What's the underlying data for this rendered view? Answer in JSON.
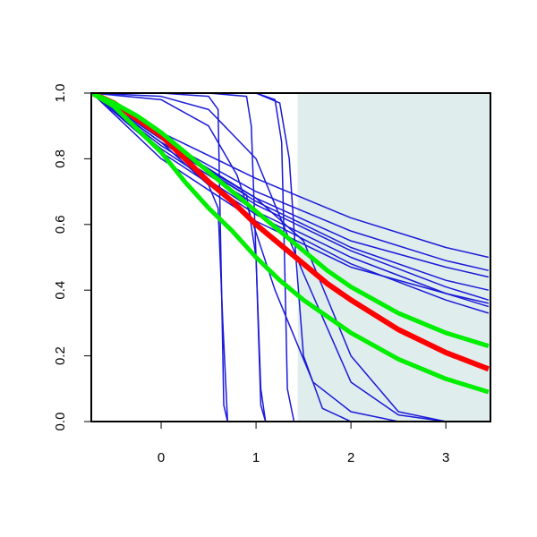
{
  "chart_data": {
    "type": "line",
    "xlim": [
      -0.736,
      3.47
    ],
    "ylim": [
      0,
      1
    ],
    "xticks": [
      0,
      1,
      2,
      3
    ],
    "yticks": [
      {
        "value": 0,
        "label": "0.0"
      },
      {
        "value": 0.2,
        "label": "0.2"
      },
      {
        "value": 0.4,
        "label": "0.4"
      },
      {
        "value": 0.6,
        "label": "0.6"
      },
      {
        "value": 0.8,
        "label": "0.8"
      },
      {
        "value": 1,
        "label": "1.0"
      }
    ],
    "shade_x": [
      1.44,
      3.47
    ],
    "shade_color": "#e0eded",
    "series": [
      {
        "color": "#1a1ad8",
        "width": 1.5,
        "x": [
          -0.73,
          0,
          1,
          2,
          3,
          3.45
        ],
        "values": [
          1,
          0.88,
          0.74,
          0.62,
          0.53,
          0.5
        ]
      },
      {
        "color": "#1a1ad8",
        "width": 1.5,
        "x": [
          -0.73,
          0,
          1,
          2,
          3,
          3.45
        ],
        "values": [
          1,
          0.86,
          0.7,
          0.58,
          0.49,
          0.46
        ]
      },
      {
        "color": "#1a1ad8",
        "width": 1.5,
        "x": [
          -0.73,
          0,
          1,
          2,
          3,
          3.45
        ],
        "values": [
          1,
          0.85,
          0.68,
          0.55,
          0.47,
          0.44
        ]
      },
      {
        "color": "#1a1ad8",
        "width": 1.5,
        "x": [
          -0.73,
          0,
          1,
          2,
          3,
          3.45
        ],
        "values": [
          1,
          0.84,
          0.66,
          0.52,
          0.41,
          0.37
        ]
      },
      {
        "color": "#1a1ad8",
        "width": 1.5,
        "x": [
          -0.73,
          0,
          1,
          2,
          3,
          3.45
        ],
        "values": [
          1,
          0.83,
          0.64,
          0.5,
          0.39,
          0.35
        ]
      },
      {
        "color": "#1a1ad8",
        "width": 1.5,
        "x": [
          -0.73,
          0,
          1,
          2,
          3,
          3.45
        ],
        "values": [
          1,
          0.82,
          0.63,
          0.48,
          0.37,
          0.33
        ]
      },
      {
        "color": "#1a1ad8",
        "width": 1.5,
        "x": [
          -0.73,
          0,
          1,
          2,
          3,
          3.45
        ],
        "values": [
          1,
          0.85,
          0.67,
          0.53,
          0.43,
          0.4
        ]
      },
      {
        "color": "#1a1ad8",
        "width": 1.5,
        "x": [
          -0.73,
          0,
          1,
          2,
          3,
          3.45
        ],
        "values": [
          1,
          0.8,
          0.61,
          0.47,
          0.39,
          0.36
        ]
      },
      {
        "color": "#1a1ad8",
        "width": 1.5,
        "x": [
          -0.73,
          0,
          0.5,
          0.6,
          0.63,
          0.66,
          0.7
        ],
        "values": [
          1,
          1,
          0.99,
          0.95,
          0.5,
          0.05,
          0
        ]
      },
      {
        "color": "#1a1ad8",
        "width": 1.5,
        "x": [
          -0.73,
          0.5,
          0.9,
          0.95,
          1,
          1.05,
          1.1
        ],
        "values": [
          1,
          1,
          0.99,
          0.9,
          0.5,
          0.05,
          0
        ]
      },
      {
        "color": "#1a1ad8",
        "width": 1.5,
        "x": [
          -0.73,
          1,
          1.2,
          1.27,
          1.3,
          1.33,
          1.4
        ],
        "values": [
          1,
          1,
          0.98,
          0.85,
          0.5,
          0.1,
          0
        ]
      },
      {
        "color": "#1a1ad8",
        "width": 1.5,
        "x": [
          -0.73,
          1,
          1.25,
          1.35,
          1.42,
          1.5,
          1.7,
          2
        ],
        "values": [
          1,
          1,
          0.97,
          0.8,
          0.5,
          0.2,
          0.04,
          0
        ]
      },
      {
        "color": "#1a1ad8",
        "width": 1.5,
        "x": [
          -0.73,
          0,
          0.5,
          1,
          1.5,
          2,
          2.5,
          3,
          3.45
        ],
        "values": [
          1,
          0.99,
          0.95,
          0.8,
          0.45,
          0.12,
          0.02,
          0,
          0
        ]
      },
      {
        "color": "#1a1ad8",
        "width": 1.5,
        "x": [
          -0.73,
          0,
          0.5,
          0.8,
          1.2,
          1.6,
          2,
          2.5,
          3.45
        ],
        "values": [
          1,
          0.98,
          0.9,
          0.75,
          0.4,
          0.12,
          0.03,
          0,
          0
        ]
      },
      {
        "color": "#1a1ad8",
        "width": 1.5,
        "x": [
          -0.73,
          0,
          0.5,
          0.9,
          1,
          1.05,
          1.1
        ],
        "values": [
          1,
          0.85,
          0.76,
          0.69,
          0.5,
          0.1,
          0
        ]
      },
      {
        "color": "#1a1ad8",
        "width": 1.5,
        "x": [
          -0.73,
          0,
          0.5,
          0.6,
          0.65,
          0.7
        ],
        "values": [
          1,
          0.85,
          0.72,
          0.65,
          0.3,
          0
        ]
      },
      {
        "color": "#1a1ad8",
        "width": 1.5,
        "x": [
          -0.73,
          0,
          1,
          1.5,
          2,
          2.5,
          3,
          3.45
        ],
        "values": [
          1,
          0.86,
          0.68,
          0.55,
          0.2,
          0.03,
          0,
          0
        ]
      },
      {
        "color": "#ff0000",
        "width": 6,
        "x": [
          -0.73,
          -0.5,
          -0.25,
          0,
          0.25,
          0.5,
          0.75,
          1,
          1.25,
          1.5,
          1.75,
          2,
          2.5,
          3,
          3.45
        ],
        "values": [
          1,
          0.97,
          0.92,
          0.87,
          0.8,
          0.73,
          0.67,
          0.6,
          0.54,
          0.48,
          0.42,
          0.37,
          0.28,
          0.21,
          0.16
        ]
      },
      {
        "color": "#00ee00",
        "width": 5,
        "x": [
          -0.73,
          -0.5,
          -0.25,
          0,
          0.25,
          0.5,
          0.75,
          1,
          1.25,
          1.5,
          1.75,
          2,
          2.5,
          3,
          3.45
        ],
        "values": [
          1,
          0.97,
          0.93,
          0.88,
          0.82,
          0.76,
          0.7,
          0.64,
          0.58,
          0.52,
          0.46,
          0.41,
          0.33,
          0.27,
          0.23
        ]
      },
      {
        "color": "#00ee00",
        "width": 5,
        "x": [
          -0.73,
          -0.5,
          -0.25,
          0,
          0.25,
          0.5,
          0.75,
          1,
          1.25,
          1.5,
          1.75,
          2,
          2.5,
          3,
          3.45
        ],
        "values": [
          1,
          0.96,
          0.89,
          0.82,
          0.73,
          0.65,
          0.58,
          0.5,
          0.43,
          0.37,
          0.32,
          0.27,
          0.19,
          0.13,
          0.09
        ]
      }
    ]
  }
}
